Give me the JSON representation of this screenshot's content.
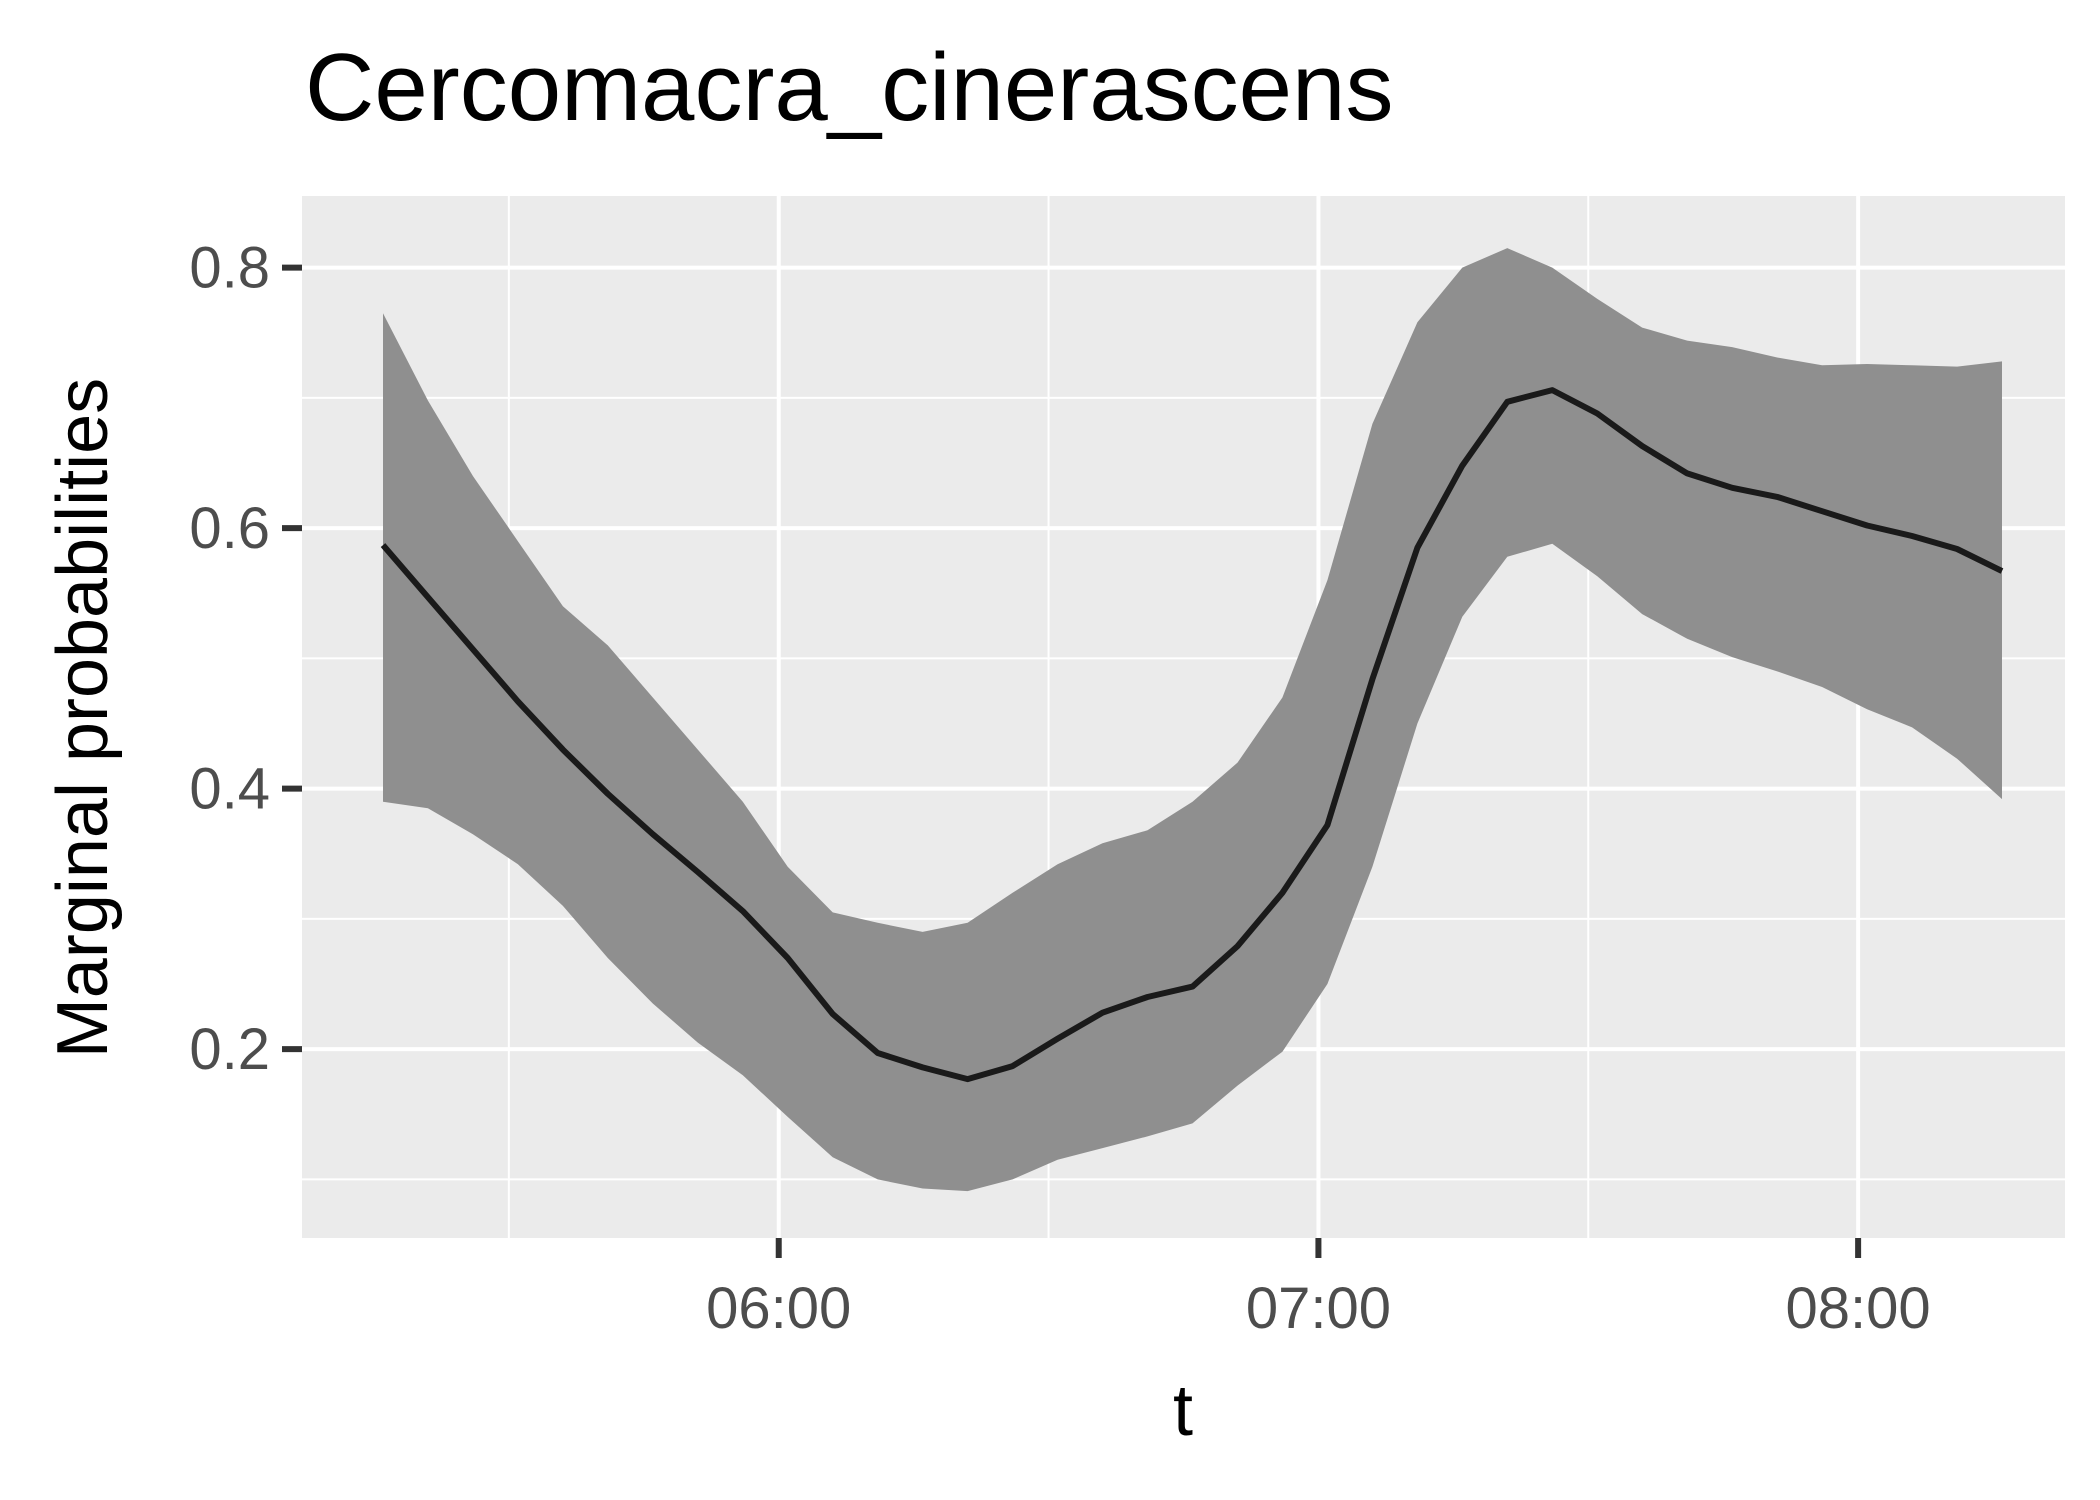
{
  "chart_data": {
    "type": "line",
    "title": "Cercomacra_cinerascens",
    "xlabel": "t",
    "ylabel": "Marginal probabilities",
    "x_ticks": [
      "06:00",
      "07:00",
      "08:00"
    ],
    "y_ticks": [
      "0.2",
      "0.4",
      "0.6",
      "0.8"
    ],
    "xlim": [
      "05:07",
      "08:23"
    ],
    "ylim": [
      0.055,
      0.855
    ],
    "grid": true,
    "colors": {
      "panel": "#ebebeb",
      "grid": "#ffffff",
      "band": "#8f8f8f",
      "line": "#1a1a1a",
      "tick_text": "#4d4d4d"
    },
    "series": [
      {
        "x": [
          "05:16",
          "05:21",
          "05:26",
          "05:31",
          "05:36",
          "05:41",
          "05:46",
          "05:51",
          "05:56",
          "06:01",
          "06:06",
          "06:11",
          "06:16",
          "06:21",
          "06:26",
          "06:31",
          "06:36",
          "06:41",
          "06:46",
          "06:51",
          "06:56",
          "07:01",
          "07:06",
          "07:11",
          "07:16",
          "07:21",
          "07:26",
          "07:31",
          "07:36",
          "07:41",
          "07:46",
          "07:51",
          "07:56",
          "08:01",
          "08:06",
          "08:11",
          "08:16"
        ],
        "y": [
          0.587,
          0.547,
          0.507,
          0.467,
          0.43,
          0.396,
          0.365,
          0.336,
          0.306,
          0.27,
          0.227,
          0.197,
          0.186,
          0.177,
          0.187,
          0.208,
          0.228,
          0.24,
          0.248,
          0.279,
          0.32,
          0.372,
          0.484,
          0.585,
          0.648,
          0.697,
          0.706,
          0.688,
          0.663,
          0.642,
          0.631,
          0.624,
          0.613,
          0.602,
          0.594,
          0.584,
          0.567
        ],
        "lower": [
          0.39,
          0.385,
          0.365,
          0.342,
          0.31,
          0.27,
          0.235,
          0.205,
          0.18,
          0.148,
          0.117,
          0.1,
          0.093,
          0.091,
          0.1,
          0.115,
          0.124,
          0.133,
          0.143,
          0.172,
          0.198,
          0.25,
          0.34,
          0.45,
          0.532,
          0.578,
          0.588,
          0.563,
          0.534,
          0.515,
          0.501,
          0.49,
          0.478,
          0.461,
          0.447,
          0.423,
          0.392
        ],
        "upper": [
          0.765,
          0.698,
          0.64,
          0.59,
          0.54,
          0.51,
          0.47,
          0.43,
          0.39,
          0.34,
          0.305,
          0.297,
          0.29,
          0.297,
          0.32,
          0.342,
          0.358,
          0.368,
          0.39,
          0.42,
          0.47,
          0.56,
          0.68,
          0.758,
          0.8,
          0.815,
          0.8,
          0.776,
          0.754,
          0.744,
          0.739,
          0.731,
          0.725,
          0.726,
          0.725,
          0.724,
          0.728
        ]
      }
    ]
  }
}
